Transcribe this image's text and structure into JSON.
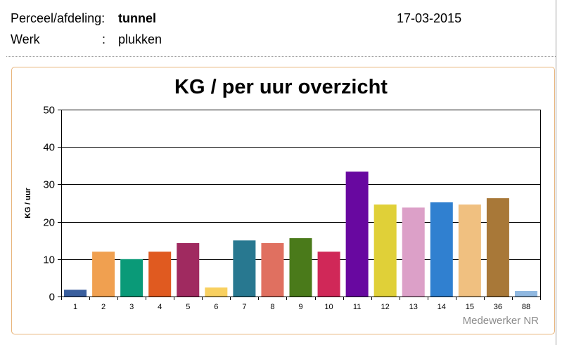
{
  "header": {
    "perceel_label": "Perceel/afdeling:",
    "perceel_value": "tunnel",
    "date": "17-03-2015",
    "werk_label": "Werk",
    "werk_sep": ":",
    "werk_value": "plukken"
  },
  "chart_data": {
    "type": "bar",
    "title": "KG / per uur overzicht",
    "xlabel": "Medewerker NR",
    "ylabel": "KG / uur",
    "ylim": [
      0,
      50
    ],
    "yticks": [
      0,
      10,
      20,
      30,
      40,
      50
    ],
    "grid": true,
    "legend": "none",
    "categories": [
      "1",
      "2",
      "3",
      "4",
      "5",
      "6",
      "7",
      "8",
      "9",
      "10",
      "11",
      "12",
      "13",
      "14",
      "15",
      "36",
      "88"
    ],
    "values": [
      1.8,
      12.0,
      10.0,
      12.0,
      14.3,
      2.4,
      15.0,
      14.3,
      15.6,
      12.0,
      33.4,
      24.6,
      23.8,
      25.2,
      24.6,
      26.3,
      1.5
    ],
    "colors": [
      "#3a5f9e",
      "#f0a050",
      "#0a9a78",
      "#e05a20",
      "#a02a60",
      "#f8d060",
      "#287890",
      "#e07060",
      "#4a7a1a",
      "#d02858",
      "#6808a0",
      "#e0d038",
      "#dca0c8",
      "#3080d0",
      "#f0c080",
      "#a87838",
      "#90b8e0"
    ]
  }
}
